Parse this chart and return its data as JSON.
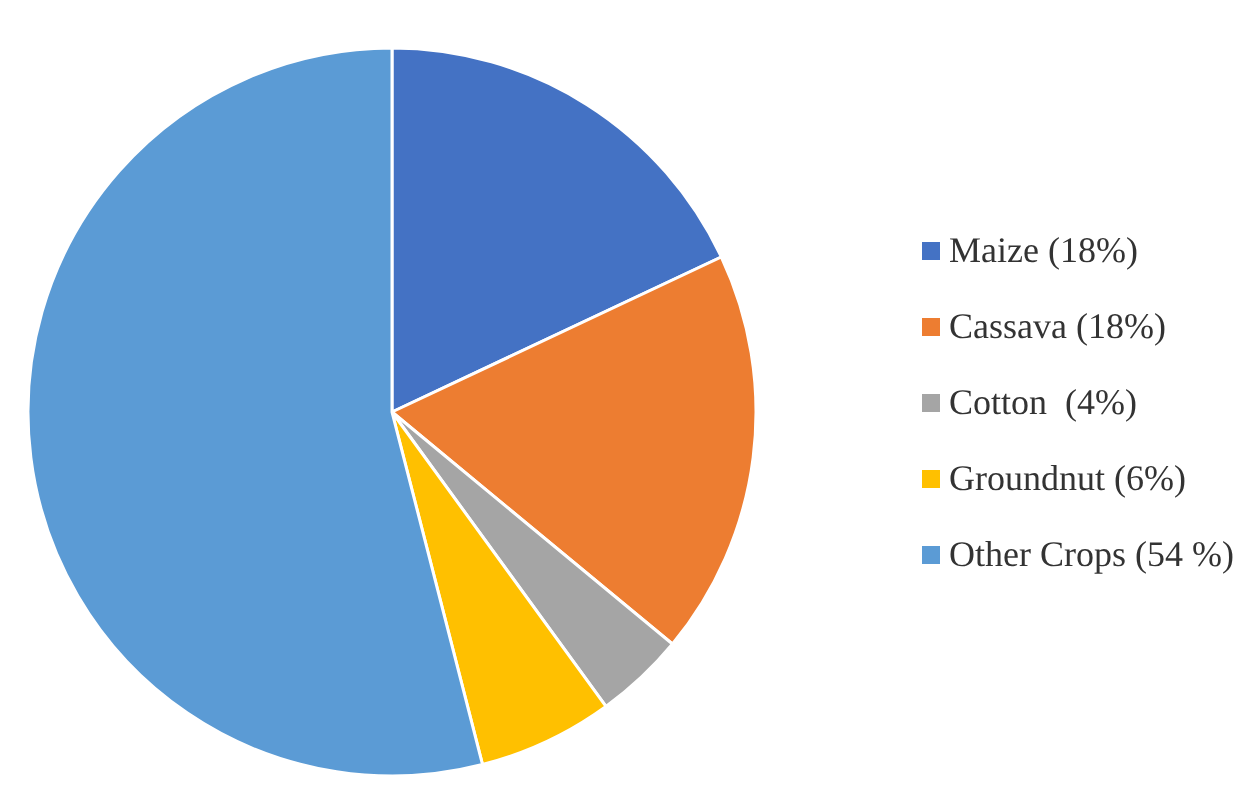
{
  "chart_data": {
    "type": "pie",
    "categories": [
      "Maize (18%)",
      "Cassava (18%)",
      "Cotton  (4%)",
      "Groundnut (6%)",
      "Other Crops (54 %)"
    ],
    "values": [
      18,
      18,
      4,
      6,
      54
    ],
    "colors": [
      "#4472c4",
      "#ed7d31",
      "#a5a5a5",
      "#ffc000",
      "#5b9bd5"
    ],
    "legend": "right"
  }
}
